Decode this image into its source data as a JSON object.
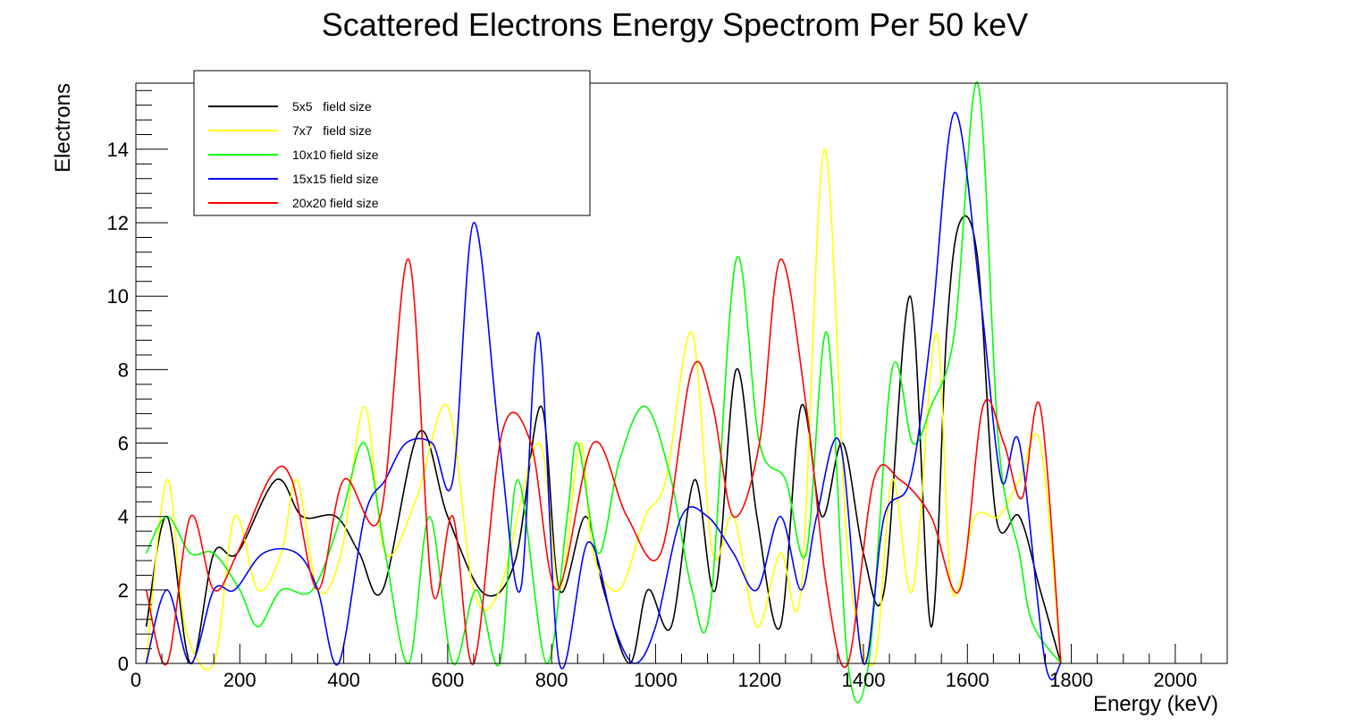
{
  "chart_data": {
    "type": "line",
    "title": "Scattered Electrons Energy Spectrom Per 50 keV",
    "xlabel": "Energy (keV)",
    "ylabel": "Electrons",
    "xlim": [
      0,
      2100
    ],
    "ylim": [
      0,
      15.8
    ],
    "xticks": [
      0,
      200,
      400,
      600,
      800,
      1000,
      1200,
      1400,
      1600,
      1800,
      2000
    ],
    "yticks": [
      0,
      2,
      4,
      6,
      8,
      10,
      12,
      14
    ],
    "grid": false,
    "legend_position": "top-left",
    "series": [
      {
        "name": "5x5   field size",
        "color": "#000000",
        "x": [
          20,
          60,
          105,
          150,
          195,
          270,
          320,
          385,
          430,
          475,
          545,
          600,
          670,
          730,
          780,
          815,
          865,
          900,
          950,
          985,
          1030,
          1075,
          1115,
          1155,
          1195,
          1240,
          1280,
          1320,
          1360,
          1400,
          1440,
          1490,
          1530,
          1560,
          1585,
          1620,
          1655,
          1700,
          1740,
          1780
        ],
        "y": [
          1,
          4,
          0,
          3,
          3,
          5,
          4,
          4,
          3,
          2,
          6.3,
          4,
          1.9,
          2.8,
          7,
          2,
          4,
          2,
          0,
          2,
          1,
          5,
          2,
          8,
          4,
          1,
          7,
          4,
          6,
          3,
          2,
          10,
          1,
          9,
          12,
          11,
          4,
          4,
          2,
          0
        ]
      },
      {
        "name": "7x7   field size",
        "color": "#ffff00",
        "x": [
          20,
          60,
          95,
          150,
          190,
          235,
          280,
          310,
          350,
          395,
          440,
          480,
          540,
          600,
          650,
          700,
          775,
          815,
          855,
          880,
          930,
          980,
          1020,
          1070,
          1110,
          1150,
          1195,
          1240,
          1280,
          1325,
          1370,
          1420,
          1455,
          1495,
          1540,
          1570,
          1615,
          1660,
          1700,
          1740,
          1780
        ],
        "y": [
          0,
          5,
          1,
          0,
          4,
          2,
          3,
          5,
          2,
          3,
          7,
          3,
          4.5,
          7,
          2,
          2,
          6,
          2,
          6,
          3,
          2,
          4,
          5,
          9,
          3,
          4,
          1,
          3,
          2,
          14,
          3,
          0,
          5,
          2,
          9,
          2,
          4,
          4,
          5,
          6,
          0
        ]
      },
      {
        "name": "10x10 field size",
        "color": "#00ff00",
        "x": [
          20,
          60,
          105,
          150,
          200,
          235,
          280,
          340,
          395,
          440,
          480,
          525,
          565,
          610,
          655,
          700,
          735,
          790,
          830,
          850,
          890,
          930,
          980,
          1030,
          1070,
          1105,
          1155,
          1200,
          1250,
          1290,
          1330,
          1370,
          1410,
          1455,
          1495,
          1530,
          1575,
          1620,
          1660,
          1700,
          1725,
          1780
        ],
        "y": [
          3,
          4,
          3,
          3,
          2,
          1,
          2,
          2,
          4,
          6,
          3,
          0,
          4,
          0,
          2,
          0,
          5,
          0,
          4,
          6,
          3,
          5.5,
          7,
          5,
          2,
          1.5,
          11,
          6,
          5,
          3,
          9,
          0,
          0,
          8,
          6,
          7,
          9,
          15.8,
          6,
          3,
          1.1,
          0
        ]
      },
      {
        "name": "15x15 field size",
        "color": "#0000ff",
        "x": [
          20,
          60,
          105,
          150,
          190,
          245,
          310,
          350,
          390,
          440,
          480,
          520,
          570,
          610,
          650,
          700,
          740,
          775,
          815,
          870,
          920,
          960,
          1000,
          1050,
          1100,
          1150,
          1195,
          1240,
          1280,
          1310,
          1355,
          1400,
          1440,
          1490,
          1530,
          1575,
          1625,
          1665,
          1700,
          1750,
          1780
        ],
        "y": [
          0,
          2,
          0,
          2,
          2,
          3,
          3,
          2,
          0,
          4,
          5,
          6,
          6,
          5,
          12,
          6,
          2,
          9,
          0,
          3.3,
          1,
          0,
          1,
          4,
          4,
          3,
          2,
          4,
          2,
          4,
          6,
          0,
          4,
          5,
          9,
          15,
          10,
          5,
          6,
          0,
          0
        ]
      },
      {
        "name": "20x20 field size",
        "color": "#ff0000",
        "x": [
          20,
          60,
          105,
          150,
          195,
          260,
          300,
          350,
          400,
          470,
          525,
          570,
          610,
          650,
          705,
          760,
          810,
          880,
          945,
          1010,
          1070,
          1110,
          1150,
          1200,
          1240,
          1290,
          1330,
          1370,
          1420,
          1470,
          1530,
          1585,
          1630,
          1670,
          1705,
          1740,
          1780
        ],
        "y": [
          2,
          0,
          4,
          2,
          3,
          5.1,
          5,
          2,
          5,
          4,
          11,
          2,
          4,
          0,
          6.3,
          6,
          2,
          6,
          4,
          3,
          8,
          7,
          4,
          6,
          11,
          7,
          2,
          0,
          5,
          5,
          4,
          2,
          7,
          6,
          4.5,
          7,
          0
        ]
      }
    ]
  }
}
